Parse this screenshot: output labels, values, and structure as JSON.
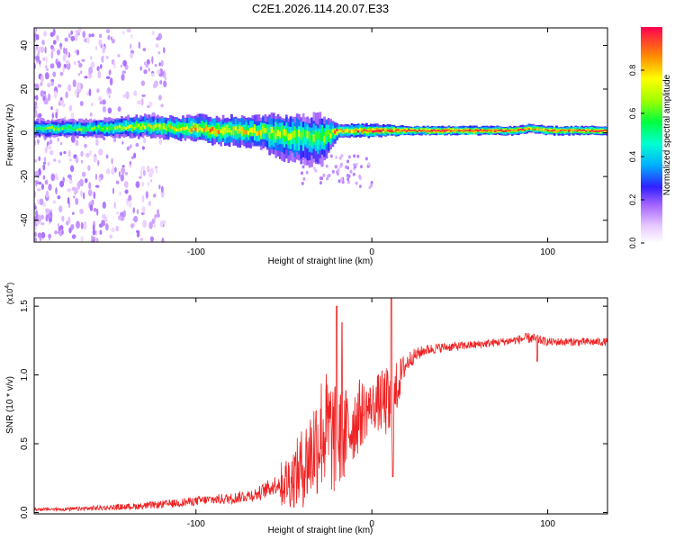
{
  "title": "C2E1.2026.114.20.07.E33",
  "colors": {
    "snr_line": "#ee2222",
    "spectrum_band_core": "#ff3a3a",
    "axis": "#000000"
  },
  "chart_data": [
    {
      "type": "heatmap",
      "title": "C2E1.2026.114.20.07.E33",
      "xlabel": "Height of straight line (km)",
      "ylabel": "Frequency (Hz)",
      "xlim": [
        -192,
        134
      ],
      "ylim": [
        -50,
        48
      ],
      "xticks": [
        -100,
        0,
        100
      ],
      "yticks": [
        -40,
        -20,
        0,
        20,
        40
      ],
      "colorbar": {
        "label": "Normalized spectral amplitude",
        "range": [
          0,
          1
        ],
        "ticks": [
          "0.0",
          "0.2",
          "0.4",
          "0.6",
          "0.8"
        ],
        "tick_values": [
          0,
          0.2,
          0.4,
          0.6,
          0.8
        ]
      },
      "ridge": {
        "x": [
          -192,
          -160,
          -130,
          -110,
          -100,
          -90,
          -70,
          -55,
          -40,
          -30,
          -20,
          -10,
          0,
          20,
          40,
          60,
          80,
          90,
          100,
          134
        ],
        "center": [
          2,
          2,
          3,
          2,
          2,
          1,
          1,
          0,
          -1,
          -2,
          1,
          1,
          1,
          1,
          1,
          1,
          1,
          2,
          1,
          1
        ],
        "half_width": [
          4,
          4,
          5,
          5,
          6,
          6,
          7,
          8,
          9,
          10,
          3,
          3,
          3,
          2,
          2,
          2,
          2,
          2,
          2,
          2
        ],
        "peak_amplitude": [
          0.6,
          0.6,
          0.7,
          0.75,
          0.8,
          0.8,
          0.75,
          0.7,
          0.65,
          0.6,
          0.85,
          0.9,
          0.95,
          1.0,
          1.0,
          1.0,
          0.95,
          0.85,
          0.95,
          1.0
        ]
      }
    },
    {
      "type": "line",
      "xlabel": "Height of straight line (km)",
      "ylabel": "SNR (10 * v/v)",
      "y_scale_label": "(x10",
      "y_scale_exponent": "4",
      "xlim": [
        -192,
        134
      ],
      "ylim": [
        -0.01,
        1.56
      ],
      "xticks": [
        -100,
        0,
        100
      ],
      "yticks": [
        0,
        0.5,
        1.0,
        1.5
      ],
      "ytick_labels": [
        "0.0",
        "0.5",
        "1.0",
        "1.5"
      ],
      "series": [
        {
          "name": "SNR",
          "envelope_x": [
            -192,
            -170,
            -150,
            -130,
            -110,
            -95,
            -80,
            -65,
            -55,
            -45,
            -38,
            -32,
            -28,
            -24,
            -20,
            -16,
            -12,
            -8,
            -4,
            0,
            4,
            8,
            10,
            12,
            14,
            18,
            22,
            30,
            40,
            60,
            80,
            90,
            100,
            134
          ],
          "envelope_y": [
            0.02,
            0.02,
            0.03,
            0.04,
            0.06,
            0.08,
            0.09,
            0.12,
            0.18,
            0.25,
            0.35,
            0.5,
            0.6,
            0.58,
            0.5,
            0.55,
            0.62,
            0.7,
            0.74,
            0.78,
            0.8,
            0.8,
            0.75,
            0.72,
            0.9,
            1.05,
            1.12,
            1.18,
            1.2,
            1.22,
            1.25,
            1.27,
            1.24,
            1.24
          ],
          "noise_amplitude": [
            0.02,
            0.03,
            0.04,
            0.05,
            0.06,
            0.07,
            0.08,
            0.1,
            0.14,
            0.22,
            0.32,
            0.4,
            0.45,
            0.45,
            0.4,
            0.36,
            0.3,
            0.28,
            0.22,
            0.16,
            0.22,
            0.26,
            0.3,
            0.3,
            0.2,
            0.1,
            0.06,
            0.04,
            0.035,
            0.03,
            0.03,
            0.04,
            0.03,
            0.03
          ],
          "spikes": [
            {
              "x": -20,
              "y": 1.5
            },
            {
              "x": -17,
              "y": 1.38
            },
            {
              "x": 11,
              "y": 1.57
            },
            {
              "x": 12,
              "y": 0.26
            },
            {
              "x": 94,
              "y": 1.1
            }
          ]
        }
      ]
    }
  ]
}
